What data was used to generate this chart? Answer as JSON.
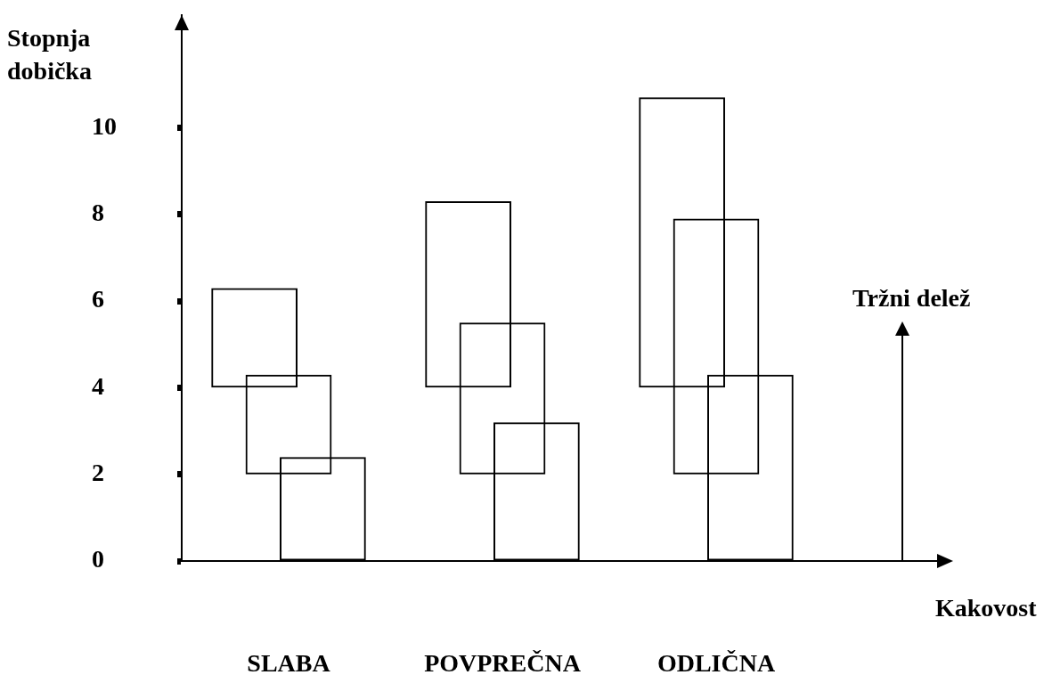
{
  "chart_data": {
    "type": "bar",
    "ylabel": "Stopnja dobička",
    "xlabel": "Kakovost",
    "categories": [
      "SLABA",
      "POVPREČNA",
      "ODLIČNA"
    ],
    "series": [
      {
        "color": "#000000",
        "base": [
          4,
          4,
          4
        ],
        "values": [
          2.3,
          4.3,
          6.7
        ]
      },
      {
        "color": "#000000",
        "base": [
          2,
          2,
          2
        ],
        "values": [
          2.3,
          3.5,
          5.9
        ]
      },
      {
        "color": "#000000",
        "base": [
          0,
          0,
          0
        ],
        "values": [
          2.4,
          3.2,
          4.3
        ]
      }
    ],
    "ylim": [
      0,
      12.6
    ],
    "yticks": [
      0,
      2,
      4,
      6,
      8,
      10
    ],
    "grid": false,
    "legend": false,
    "annotations": [
      "Tržni delež"
    ]
  }
}
